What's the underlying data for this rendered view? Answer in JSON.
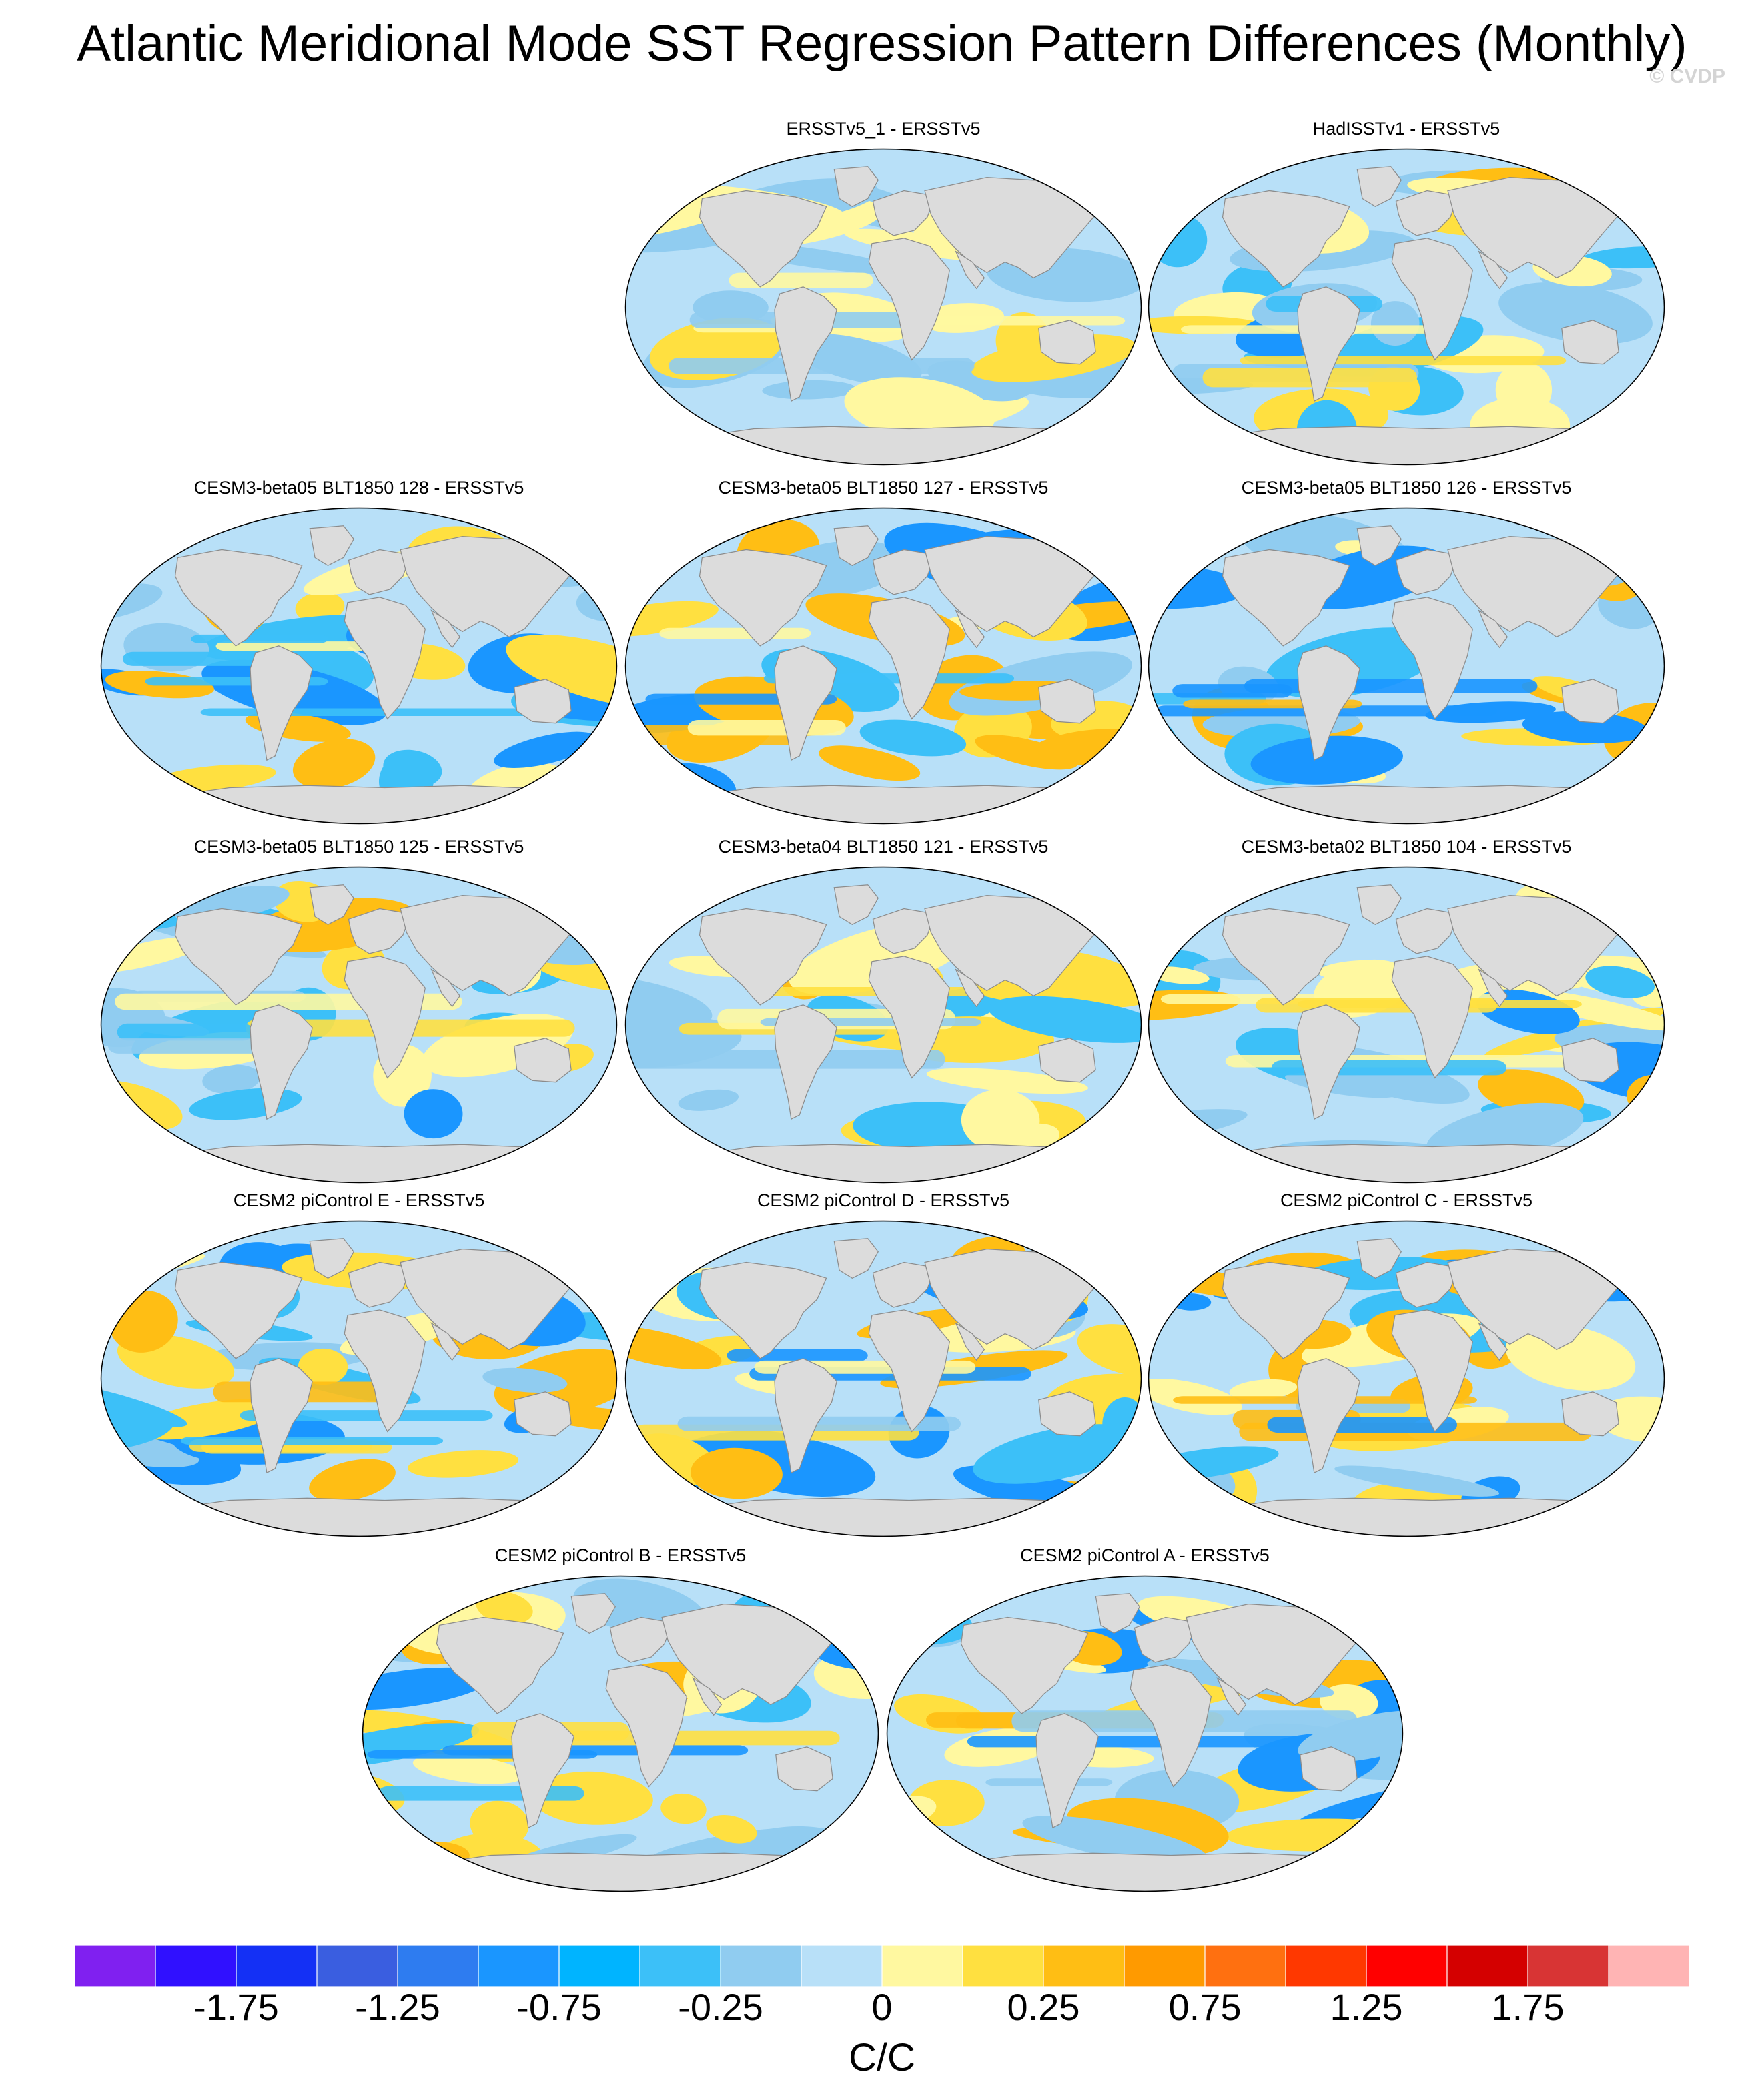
{
  "title": "Atlantic Meridional Mode SST Regression Pattern Differences (Monthly)",
  "watermark": "© CVDP",
  "panels": [
    {
      "title": "ERSSTv5_1 - ERSSTv5",
      "tone": 0
    },
    {
      "title": "HadISSTv1 - ERSSTv5",
      "tone": 1
    },
    {
      "title": "CESM3-beta05 BLT1850 128 - ERSSTv5",
      "tone": 2
    },
    {
      "title": "CESM3-beta05 BLT1850 127 - ERSSTv5",
      "tone": 3
    },
    {
      "title": "CESM3-beta05 BLT1850 126 - ERSSTv5",
      "tone": 2
    },
    {
      "title": "CESM3-beta05 BLT1850 125 - ERSSTv5",
      "tone": 1
    },
    {
      "title": "CESM3-beta04 BLT1850 121 - ERSSTv5",
      "tone": 1
    },
    {
      "title": "CESM3-beta02 BLT1850 104 - ERSSTv5",
      "tone": 1
    },
    {
      "title": "CESM2 piControl E - ERSSTv5",
      "tone": 3
    },
    {
      "title": "CESM2 piControl D - ERSSTv5",
      "tone": 3
    },
    {
      "title": "CESM2 piControl C - ERSSTv5",
      "tone": 3
    },
    {
      "title": "CESM2 piControl B - ERSSTv5",
      "tone": 2
    },
    {
      "title": "CESM2 piControl A - ERSSTv5",
      "tone": 2
    }
  ],
  "colorbar": {
    "colors": [
      "#8020f0",
      "#3010ff",
      "#1430f5",
      "#3a5ee0",
      "#2e7cf0",
      "#1a96ff",
      "#00b4ff",
      "#3cc0f8",
      "#90ccf0",
      "#b8e0f8",
      "#fff8a0",
      "#ffe040",
      "#ffbe14",
      "#ff9a00",
      "#ff7010",
      "#ff3800",
      "#ff0000",
      "#d40000",
      "#d83434",
      "#ffb4b4"
    ],
    "labels": [
      "-1.75",
      "-1.25",
      "-0.75",
      "-0.25",
      "0",
      "0.25",
      "0.75",
      "1.25",
      "1.75"
    ],
    "label_bin_edges": [
      2,
      4,
      6,
      8,
      10,
      12,
      14,
      16,
      18
    ]
  },
  "units": "C/C"
}
